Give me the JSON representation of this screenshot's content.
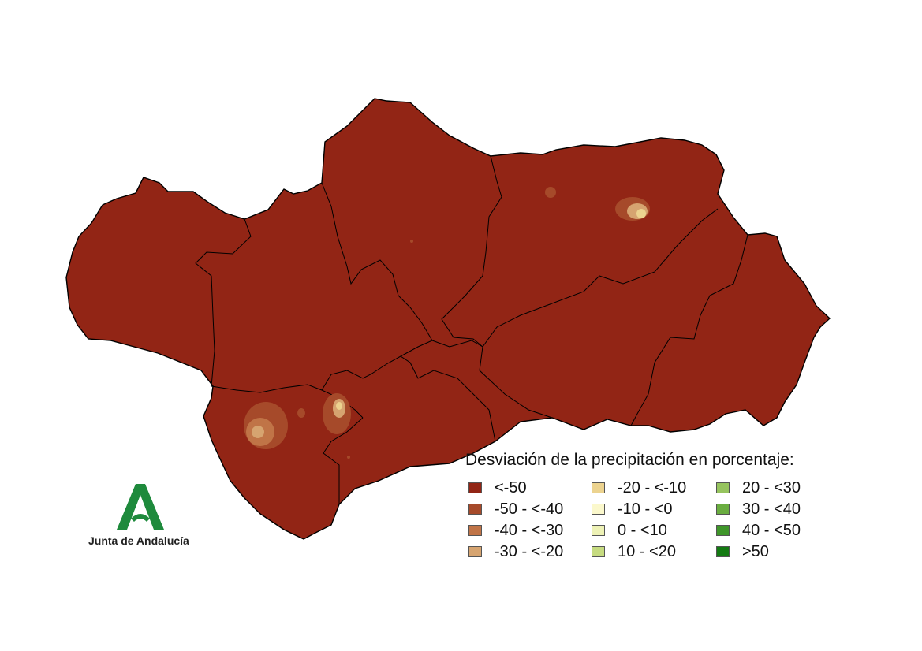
{
  "legend": {
    "title": "Desviación de la precipitación en porcentaje:",
    "classes": [
      {
        "label": "<-50",
        "color": "#922515"
      },
      {
        "label": "-50 - <-40",
        "color": "#a64a2a"
      },
      {
        "label": "-40 - <-30",
        "color": "#c07447"
      },
      {
        "label": "-30 - <-20",
        "color": "#d6a470"
      },
      {
        "label": "-20 - <-10",
        "color": "#ecd38f"
      },
      {
        "label": "-10 - <0",
        "color": "#fbf8cc"
      },
      {
        "label": "0 - <10",
        "color": "#eef2b6"
      },
      {
        "label": "10 - <20",
        "color": "#c6db80"
      },
      {
        "label": "20 - <30",
        "color": "#96c45e"
      },
      {
        "label": "30 - <40",
        "color": "#6aad40"
      },
      {
        "label": "40 - <50",
        "color": "#3f962a"
      },
      {
        "label": ">50",
        "color": "#137a12"
      }
    ]
  },
  "branding": {
    "name": "Junta de Andalucía",
    "logo_color": "#1e8a3c"
  },
  "map": {
    "base_color": "#922515",
    "border_color": "#000000"
  }
}
